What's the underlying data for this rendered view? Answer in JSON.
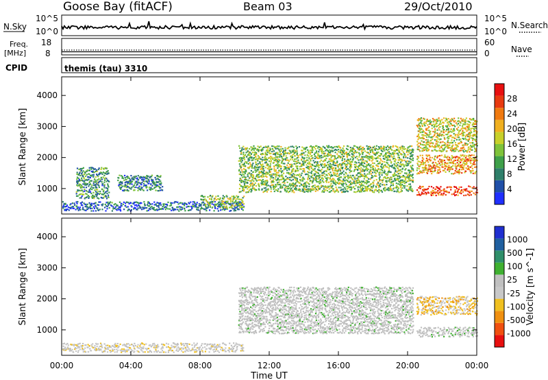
{
  "header": {
    "station": "Goose Bay (fitACF)",
    "beam": "Beam 03",
    "date": "29/Oct/2010"
  },
  "noise_panel": {
    "left_label": "N.Sky",
    "right_label": "N.Search",
    "left_ticks": [
      "10^5",
      "10^0"
    ],
    "right_ticks": [
      "10^5",
      "10^0"
    ]
  },
  "freq_panel": {
    "left_label_line1": "Freq.",
    "left_label_line2": "[MHz]",
    "right_label": "Nave",
    "left_ticks": [
      "18",
      "8"
    ],
    "right_ticks": [
      "60",
      "0"
    ]
  },
  "cpid_panel": {
    "label": "CPID",
    "value": "themis (tau) 3310"
  },
  "x_axis": {
    "title": "Time UT",
    "ticks": [
      "00:00",
      "04:00",
      "08:00",
      "12:00",
      "16:00",
      "20:00",
      "00:00"
    ]
  },
  "colors": {
    "power": [
      "#1f2fff",
      "#2050a8",
      "#2f7f6a",
      "#3fa04a",
      "#7fc33a",
      "#c8d02a",
      "#f0b020",
      "#f07a10",
      "#e83a10",
      "#e81010"
    ],
    "velocity": [
      "#e81010",
      "#f05010",
      "#f09010",
      "#f0c020",
      "#c8c8c8",
      "#c0c0c0",
      "#3fb030",
      "#2f8f6a",
      "#2060a0",
      "#1f2fd0"
    ],
    "ground_scatter": "#c0c0c0"
  },
  "chart_data": [
    {
      "type": "heatmap",
      "title": "Power",
      "ylabel": "Slant Range [km]",
      "xlabel": "Time UT",
      "xlim_hours": [
        0,
        24
      ],
      "ylim": [
        180,
        4600
      ],
      "yticks": [
        1000,
        2000,
        3000,
        4000
      ],
      "colorbar": {
        "label": "Power [dB]",
        "range": [
          0,
          32
        ],
        "ticks": [
          "4",
          "8",
          "12",
          "16",
          "20",
          "24",
          "28"
        ]
      },
      "features": [
        {
          "region": "near-range band",
          "t_start": 0.0,
          "t_end": 10.5,
          "range_min": 300,
          "range_max": 600,
          "power_db": 6
        },
        {
          "region": "near-range enhancement",
          "t_start": 8.0,
          "t_end": 10.5,
          "range_min": 400,
          "range_max": 800,
          "power_db": 14
        },
        {
          "region": "early scatter",
          "t_start": 0.8,
          "t_end": 2.7,
          "range_min": 700,
          "range_max": 1700,
          "power_db": 10
        },
        {
          "region": "arc",
          "t_start": 3.2,
          "t_end": 5.8,
          "range_min": 950,
          "range_max": 1450,
          "power_db": 8
        },
        {
          "region": "main band",
          "t_start": 10.2,
          "t_end": 20.3,
          "range_min": 900,
          "range_max": 2400,
          "power_db": 14
        },
        {
          "region": "late ground scatter",
          "t_start": 20.5,
          "t_end": 24.0,
          "range_min": 800,
          "range_max": 1100,
          "power_db": 28
        },
        {
          "region": "late upper band",
          "t_start": 20.5,
          "t_end": 24.0,
          "range_min": 1500,
          "range_max": 2100,
          "power_db": 22
        },
        {
          "region": "late sporadic",
          "t_start": 20.5,
          "t_end": 24.0,
          "range_min": 2200,
          "range_max": 3300,
          "power_db": 18
        }
      ]
    },
    {
      "type": "heatmap",
      "title": "Velocity",
      "ylabel": "Slant Range [km]",
      "xlabel": "Time UT",
      "xlim_hours": [
        0,
        24
      ],
      "ylim": [
        180,
        4600
      ],
      "yticks": [
        1000,
        2000,
        3000,
        4000
      ],
      "colorbar": {
        "label": "Velocity [m s^-1]",
        "range": [
          -1200,
          1200
        ],
        "ticks": [
          "1000",
          "500",
          "100",
          "25",
          "-25",
          "-100",
          "-500",
          "-1000"
        ]
      },
      "features": [
        {
          "region": "near-range band",
          "t_start": 0.0,
          "t_end": 10.5,
          "range_min": 300,
          "range_max": 600,
          "velocity": -60
        },
        {
          "region": "main band ground scatter",
          "t_start": 10.2,
          "t_end": 20.3,
          "range_min": 900,
          "range_max": 2400,
          "velocity": 0
        },
        {
          "region": "late ground scatter",
          "t_start": 20.5,
          "t_end": 24.0,
          "range_min": 800,
          "range_max": 1100,
          "velocity": 0
        },
        {
          "region": "late upper band",
          "t_start": 20.5,
          "t_end": 24.0,
          "range_min": 1500,
          "range_max": 2100,
          "velocity": -300
        }
      ]
    }
  ]
}
